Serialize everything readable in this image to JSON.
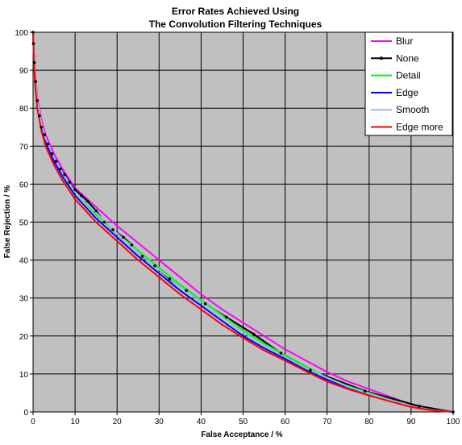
{
  "chart_data": {
    "type": "line",
    "title": [
      "Error Rates Achieved Using",
      "The Convolution Filtering Techniques"
    ],
    "xlabel": "False Acceptance / %",
    "ylabel": "False Rejection / %",
    "xlim": [
      0,
      100
    ],
    "ylim": [
      0,
      100
    ],
    "xticks": [
      0,
      10,
      20,
      30,
      40,
      50,
      60,
      70,
      80,
      90,
      100
    ],
    "yticks": [
      0,
      10,
      20,
      30,
      40,
      50,
      60,
      70,
      80,
      90,
      100
    ],
    "grid": true,
    "legend": "top-right",
    "series": [
      {
        "name": "Blur",
        "color": "#ff00ff",
        "markers": false,
        "x": [
          0,
          0.2,
          0.5,
          1,
          2,
          3,
          5,
          7,
          10,
          15,
          20,
          25,
          30,
          35,
          40,
          45,
          50,
          55,
          60,
          65,
          70,
          75,
          80,
          85,
          90,
          95,
          100
        ],
        "y": [
          100,
          95,
          89,
          83,
          77,
          73,
          68,
          64,
          59,
          54,
          49,
          44.5,
          40,
          35.5,
          31,
          27,
          23.5,
          20,
          16.5,
          13.5,
          10.5,
          8,
          6,
          4,
          2,
          0.6,
          0
        ]
      },
      {
        "name": "None",
        "color": "#000000",
        "markers": true,
        "x": [
          0,
          0.1,
          0.3,
          0.6,
          1,
          1.5,
          2,
          2.7,
          3.5,
          4.5,
          5.5,
          6.5,
          7.5,
          8.7,
          10,
          11.5,
          13,
          15,
          17,
          19,
          21.5,
          23.5,
          26,
          29,
          32.5,
          36.5,
          41,
          46,
          52.5,
          59,
          66,
          79,
          92,
          100
        ],
        "y": [
          100,
          97,
          92,
          87,
          82,
          78,
          75,
          73,
          70.5,
          68,
          66,
          64,
          62.5,
          60.5,
          58.5,
          57,
          55.5,
          53,
          50,
          48,
          46,
          44,
          41,
          38.5,
          35,
          32,
          28.5,
          25,
          20.5,
          15.5,
          11,
          5.5,
          1.5,
          0
        ]
      },
      {
        "name": "Detail",
        "color": "#00ff00",
        "markers": false,
        "x": [
          0,
          0.2,
          0.5,
          1,
          2,
          3,
          5,
          7,
          10,
          15,
          20,
          25,
          30,
          35,
          40,
          45,
          50,
          55,
          60,
          65,
          70,
          75,
          80,
          85,
          90,
          95,
          100
        ],
        "y": [
          100,
          94,
          88,
          82,
          76,
          72,
          67,
          63,
          58,
          52,
          47,
          42.5,
          38,
          33.5,
          29.5,
          25.5,
          21.5,
          18,
          15,
          12,
          9,
          6.8,
          5,
          3.2,
          1.5,
          0.5,
          0
        ]
      },
      {
        "name": "Edge",
        "color": "#0000ff",
        "markers": false,
        "x": [
          0,
          0.2,
          0.5,
          1,
          2,
          3,
          5,
          7,
          10,
          15,
          20,
          25,
          30,
          35,
          40,
          45,
          50,
          55,
          60,
          65,
          70,
          75,
          80,
          85,
          90,
          95,
          100
        ],
        "y": [
          100,
          93,
          87,
          81,
          75,
          71,
          66,
          62,
          57,
          51,
          46,
          41,
          36.5,
          32,
          28,
          24,
          20,
          16.8,
          14,
          11,
          8.5,
          6.3,
          4.6,
          3,
          1.5,
          0.5,
          0
        ]
      },
      {
        "name": "Smooth",
        "color": "#99bbee",
        "markers": false,
        "x": [
          0,
          0.2,
          0.5,
          1,
          2,
          3,
          5,
          7,
          10,
          15,
          20,
          25,
          30,
          35,
          40,
          45,
          50,
          55,
          60,
          65,
          70,
          75,
          80,
          85,
          90,
          95,
          100
        ],
        "y": [
          100,
          94,
          88,
          82,
          76,
          72,
          67,
          63,
          58,
          52.5,
          47,
          42,
          37.5,
          33,
          29,
          25,
          21,
          17.5,
          14.5,
          11.5,
          9,
          6.6,
          4.8,
          3.1,
          1.5,
          0.5,
          0
        ]
      },
      {
        "name": "Edge more",
        "color": "#ff0000",
        "markers": false,
        "x": [
          0,
          0.2,
          0.5,
          1,
          2,
          3,
          5,
          7,
          10,
          15,
          20,
          25,
          30,
          35,
          40,
          45,
          50,
          55,
          60,
          65,
          70,
          75,
          80,
          85,
          90,
          95,
          100
        ],
        "y": [
          100,
          92,
          86,
          80,
          74,
          70,
          65,
          61,
          56,
          50,
          45,
          40,
          35.5,
          31,
          27,
          23,
          19.5,
          16.2,
          13.5,
          10.7,
          8,
          6,
          4.3,
          2.8,
          1.3,
          0.4,
          0
        ]
      }
    ]
  }
}
